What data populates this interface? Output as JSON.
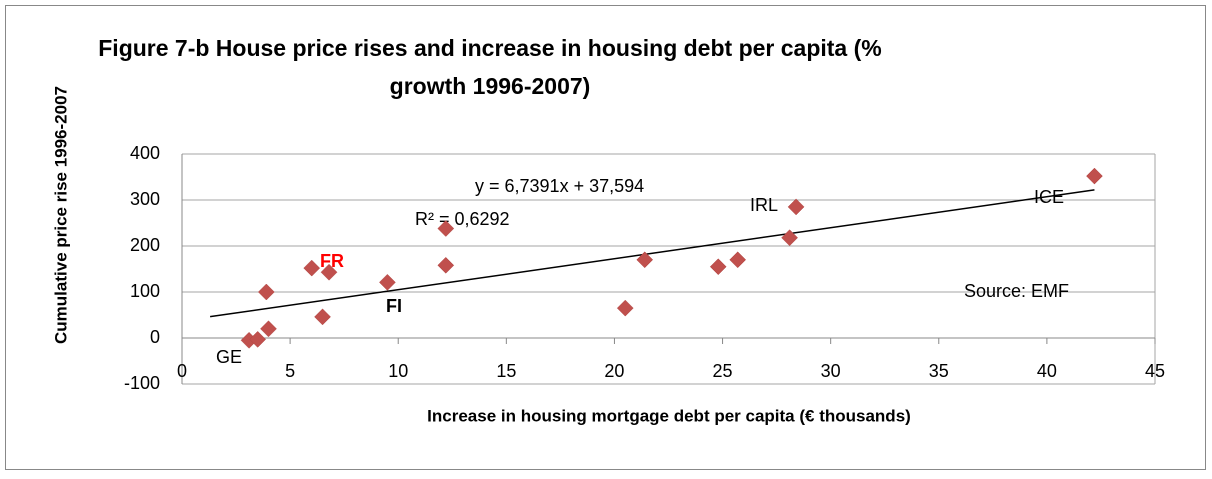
{
  "chart_data": {
    "type": "scatter",
    "title": [
      "Figure  7-b House price rises and increase in housing debt per capita (%",
      "growth 1996-2007)"
    ],
    "x_label": "Increase in housing mortgage debt per capita (€ thousands)",
    "y_label": "Cumulative price rise 1996-2007",
    "x": [
      3.1,
      3.5,
      4.0,
      3.9,
      6.0,
      6.8,
      6.5,
      9.5,
      12.2,
      12.2,
      20.5,
      21.4,
      24.8,
      25.7,
      28.1,
      28.4,
      42.2
    ],
    "values": [
      -5,
      -3,
      20,
      100,
      152,
      143,
      46,
      121,
      238,
      158,
      65,
      170,
      155,
      170,
      218,
      285,
      352
    ],
    "color": "#c0504d",
    "xlim": [
      0,
      45
    ],
    "xticks": [
      0,
      5,
      10,
      15,
      20,
      25,
      30,
      35,
      40,
      45
    ],
    "ylim": [
      -100,
      400
    ],
    "yticks": [
      -100,
      0,
      100,
      200,
      300,
      400
    ],
    "grid": true,
    "trendline": {
      "slope": 6.7391,
      "intercept": 37.594,
      "x": [
        1.3,
        42.2
      ],
      "equation": "y = 6,7391x + 37,594",
      "r_squared": "R² = 0,6292"
    },
    "annotations": [
      "GE",
      "FR",
      "FI",
      "IRL",
      "ICE",
      "Source: EMF"
    ]
  }
}
